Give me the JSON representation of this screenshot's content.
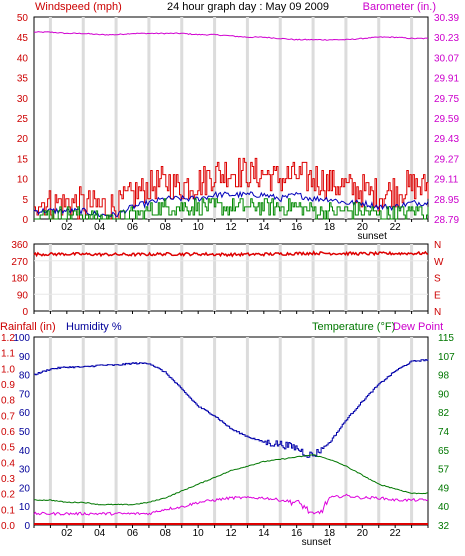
{
  "chart_data": [
    {
      "type": "line",
      "title": "24 hour graph day : May 09 2009",
      "left_axis_label": "Windspeed (mph)",
      "right_axis_label": "Barometer (in.)",
      "left_ticks": [
        "0",
        "5",
        "10",
        "15",
        "20",
        "25",
        "30",
        "35",
        "40",
        "45",
        "50"
      ],
      "right_ticks": [
        "28.79",
        "28.95",
        "29.11",
        "29.27",
        "29.43",
        "29.59",
        "29.75",
        "29.91",
        "30.07",
        "30.23",
        "30.39"
      ],
      "ylim_left": [
        0,
        50
      ],
      "ylim_right": [
        28.79,
        30.39
      ],
      "x_ticks": [
        "02",
        "04",
        "06",
        "08",
        "10",
        "12",
        "14",
        "16",
        "18",
        "20",
        "22"
      ],
      "x_marker": "sunset",
      "grid": true,
      "series": [
        {
          "role": "barometer",
          "color": "#d000d0",
          "axis": "right",
          "x": [
            0,
            1,
            2,
            3,
            4,
            5,
            6,
            7,
            8,
            9,
            10,
            11,
            12,
            13,
            14,
            15,
            16,
            17,
            18,
            19,
            20,
            21,
            22,
            23,
            24
          ],
          "y": [
            30.27,
            30.27,
            30.26,
            30.26,
            30.25,
            30.25,
            30.26,
            30.26,
            30.26,
            30.26,
            30.25,
            30.25,
            30.24,
            30.23,
            30.23,
            30.22,
            30.21,
            30.21,
            30.21,
            30.21,
            30.22,
            30.23,
            30.23,
            30.22,
            30.22
          ]
        },
        {
          "role": "gust",
          "color": "#dd0000",
          "axis": "left",
          "x": [
            0,
            1,
            2,
            3,
            4,
            5,
            6,
            7,
            8,
            9,
            10,
            11,
            12,
            13,
            14,
            15,
            16,
            17,
            18,
            19,
            20,
            21,
            22,
            23,
            24
          ],
          "y": [
            5,
            4,
            4,
            4,
            3,
            3,
            6,
            8,
            9,
            8,
            9,
            11,
            12,
            11,
            11,
            10,
            11,
            10,
            9,
            8,
            7,
            6,
            7,
            8,
            8
          ]
        },
        {
          "role": "average",
          "color": "#0000bb",
          "axis": "left",
          "x": [
            0,
            1,
            2,
            3,
            4,
            5,
            6,
            7,
            8,
            9,
            10,
            11,
            12,
            13,
            14,
            15,
            16,
            17,
            18,
            19,
            20,
            21,
            22,
            23,
            24
          ],
          "y": [
            2,
            2,
            2,
            2,
            1,
            1,
            3,
            4,
            5,
            5,
            5,
            6,
            6,
            6,
            6,
            5,
            6,
            5,
            5,
            4,
            4,
            3,
            3,
            4,
            4
          ]
        },
        {
          "role": "low",
          "color": "#008800",
          "axis": "left",
          "x": [
            0,
            1,
            2,
            3,
            4,
            5,
            6,
            7,
            8,
            9,
            10,
            11,
            12,
            13,
            14,
            15,
            16,
            17,
            18,
            19,
            20,
            21,
            22,
            23,
            24
          ],
          "y": [
            1,
            1,
            1,
            1,
            0,
            0,
            1,
            2,
            3,
            3,
            3,
            3,
            3,
            3,
            3,
            3,
            3,
            2,
            2,
            2,
            2,
            1,
            1,
            2,
            2
          ]
        }
      ]
    },
    {
      "type": "line",
      "left_ticks": [
        "0",
        "90",
        "180",
        "270",
        "360"
      ],
      "right_ticks": [
        "N",
        "E",
        "S",
        "W",
        "N"
      ],
      "ylim": [
        0,
        360
      ],
      "x_ticks": [
        "02",
        "04",
        "06",
        "08",
        "10",
        "12",
        "14",
        "16",
        "18",
        "20",
        "22"
      ],
      "grid": true,
      "series": [
        {
          "role": "wind_direction",
          "color": "#dd0000",
          "x": [
            0,
            2,
            4,
            6,
            8,
            10,
            12,
            14,
            16,
            17,
            18,
            20,
            22,
            24
          ],
          "y": [
            305,
            306,
            304,
            303,
            306,
            306,
            303,
            305,
            309,
            311,
            310,
            308,
            309,
            310
          ]
        }
      ]
    },
    {
      "type": "line",
      "left_axis_label_1": "Rainfall (in)",
      "left_axis_label_2": "Humidity %",
      "right_axis_label_1": "Temperature (°F)",
      "right_axis_label_2": "Dew Point",
      "left_ticks_rain": [
        "0.0",
        "0.1",
        "0.2",
        "0.3",
        "0.4",
        "0.5",
        "0.6",
        "0.7",
        "0.8",
        "0.9",
        "1.0",
        "1.1",
        "1.2"
      ],
      "left_ticks_hum": [
        "0",
        "10",
        "20",
        "30",
        "40",
        "50",
        "60",
        "70",
        "80",
        "90",
        "100"
      ],
      "right_ticks": [
        "32",
        "40",
        "49",
        "57",
        "65",
        "74",
        "82",
        "90",
        "98",
        "107",
        "115"
      ],
      "ylim_humidity": [
        0,
        100
      ],
      "ylim_temp": [
        32,
        115
      ],
      "x_ticks": [
        "02",
        "04",
        "06",
        "08",
        "10",
        "12",
        "14",
        "16",
        "18",
        "20",
        "22"
      ],
      "x_marker": "sunset",
      "grid": true,
      "series": [
        {
          "role": "humidity",
          "color": "#0000aa",
          "axis": "humidity",
          "x": [
            0,
            1,
            2,
            3,
            4,
            5,
            6,
            7,
            8,
            9,
            10,
            11,
            12,
            13,
            14,
            15,
            16,
            16.5,
            17,
            18,
            19,
            20,
            21,
            22,
            23,
            24
          ],
          "y": [
            80,
            83,
            84,
            84,
            85,
            85,
            86,
            86,
            81,
            72,
            63,
            58,
            51,
            47,
            44,
            43,
            41,
            38,
            37,
            44,
            56,
            66,
            75,
            82,
            87,
            88
          ]
        },
        {
          "role": "temperature",
          "color": "#007700",
          "axis": "temp",
          "x": [
            0,
            1,
            2,
            3,
            4,
            5,
            6,
            7,
            8,
            9,
            10,
            11,
            12,
            13,
            14,
            15,
            16,
            17,
            18,
            19,
            20,
            21,
            22,
            23,
            24
          ],
          "y": [
            43,
            43,
            42,
            42,
            41,
            41,
            41,
            42,
            44,
            47,
            50,
            53,
            56,
            58,
            60,
            61,
            62,
            63,
            61,
            58,
            54,
            50,
            48,
            46,
            46
          ]
        },
        {
          "role": "dew_point",
          "color": "#dd00dd",
          "axis": "temp",
          "x": [
            0,
            1,
            2,
            3,
            4,
            5,
            6,
            7,
            8,
            9,
            10,
            11,
            12,
            13,
            14,
            15,
            16,
            16.5,
            17,
            17.5,
            18,
            19,
            20,
            21,
            22,
            23,
            24
          ],
          "y": [
            37,
            37,
            37,
            37,
            37,
            37,
            37,
            37,
            39,
            40,
            42,
            43,
            44,
            44,
            44,
            43,
            42,
            40,
            36,
            38,
            44,
            45,
            44,
            44,
            43,
            43,
            43
          ]
        },
        {
          "role": "rainfall",
          "color": "#dd0000",
          "axis": "rain",
          "x": [
            0,
            24
          ],
          "y": [
            0,
            0
          ]
        }
      ]
    }
  ]
}
